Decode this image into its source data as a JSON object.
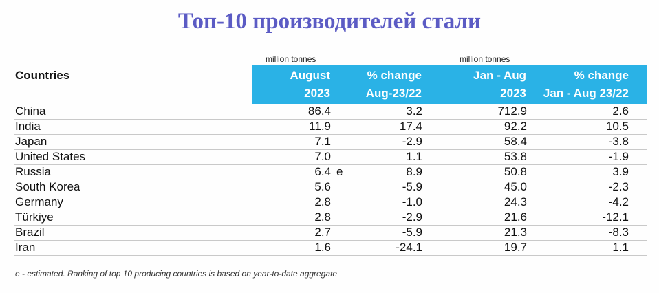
{
  "title": "Топ-10 производителей стали",
  "units": {
    "left": "million tonnes",
    "right": "million tonnes"
  },
  "headers": {
    "countries": "Countries",
    "col1": [
      "August",
      "2023"
    ],
    "col2": [
      "% change",
      "Aug-23/22"
    ],
    "col3": [
      "Jan - Aug",
      "2023"
    ],
    "col4": [
      "% change",
      "Jan - Aug 23/22"
    ]
  },
  "rows": [
    {
      "country": "China",
      "aug": "86.4",
      "est": "",
      "chg": "3.2",
      "ytd": "712.9",
      "ytd_chg": "2.6"
    },
    {
      "country": "India",
      "aug": "11.9",
      "est": "",
      "chg": "17.4",
      "ytd": "92.2",
      "ytd_chg": "10.5"
    },
    {
      "country": "Japan",
      "aug": "7.1",
      "est": "",
      "chg": "-2.9",
      "ytd": "58.4",
      "ytd_chg": "-3.8"
    },
    {
      "country": "United States",
      "aug": "7.0",
      "est": "",
      "chg": "1.1",
      "ytd": "53.8",
      "ytd_chg": "-1.9"
    },
    {
      "country": "Russia",
      "aug": "6.4",
      "est": "e",
      "chg": "8.9",
      "ytd": "50.8",
      "ytd_chg": "3.9"
    },
    {
      "country": "South Korea",
      "aug": "5.6",
      "est": "",
      "chg": "-5.9",
      "ytd": "45.0",
      "ytd_chg": "-2.3"
    },
    {
      "country": "Germany",
      "aug": "2.8",
      "est": "",
      "chg": "-1.0",
      "ytd": "24.3",
      "ytd_chg": "-4.2"
    },
    {
      "country": "Türkiye",
      "aug": "2.8",
      "est": "",
      "chg": "-2.9",
      "ytd": "21.6",
      "ytd_chg": "-12.1"
    },
    {
      "country": "Brazil",
      "aug": "2.7",
      "est": "",
      "chg": "-5.9",
      "ytd": "21.3",
      "ytd_chg": "-8.3"
    },
    {
      "country": "Iran",
      "aug": "1.6",
      "est": "",
      "chg": "-24.1",
      "ytd": "19.7",
      "ytd_chg": "1.1"
    }
  ],
  "footnote": "e - estimated. Ranking of top 10 producing countries is based on year-to-date aggregate"
}
